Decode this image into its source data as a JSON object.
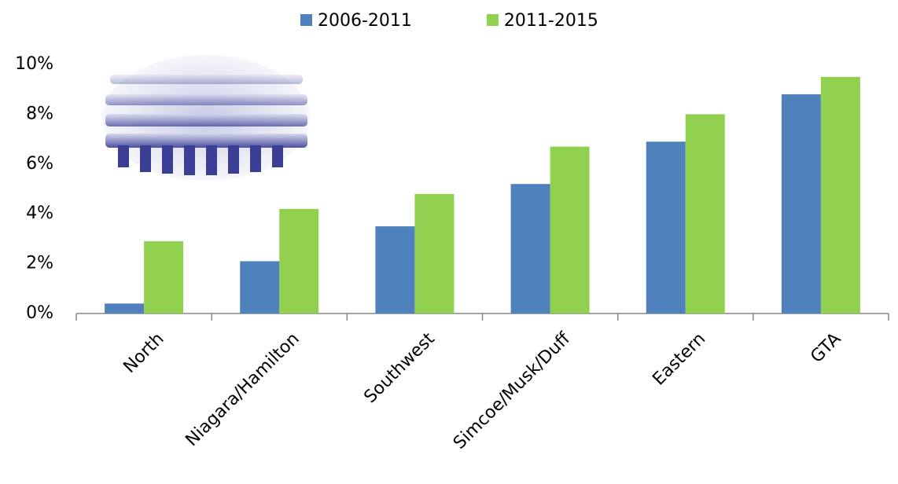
{
  "chart_data": {
    "type": "bar",
    "categories": [
      "North",
      "Niagara/Hamilton",
      "Southwest",
      "Simcoe/Musk/Duff",
      "Eastern",
      "GTA"
    ],
    "series": [
      {
        "name": "2006-2011",
        "color": "#4f81bd",
        "values": [
          0.4,
          2.1,
          3.5,
          5.2,
          6.9,
          8.8
        ]
      },
      {
        "name": "2011-2015",
        "color": "#92d050",
        "values": [
          2.9,
          4.2,
          4.8,
          6.7,
          8.0,
          9.5
        ]
      }
    ],
    "ylim": [
      0,
      10
    ],
    "yticks": [
      {
        "value": 0,
        "label": "0%"
      },
      {
        "value": 2,
        "label": "2%"
      },
      {
        "value": 4,
        "label": "4%"
      },
      {
        "value": 6,
        "label": "6%"
      },
      {
        "value": 8,
        "label": "8%"
      },
      {
        "value": 10,
        "label": "10%"
      }
    ],
    "grid": false,
    "legend": "top"
  }
}
